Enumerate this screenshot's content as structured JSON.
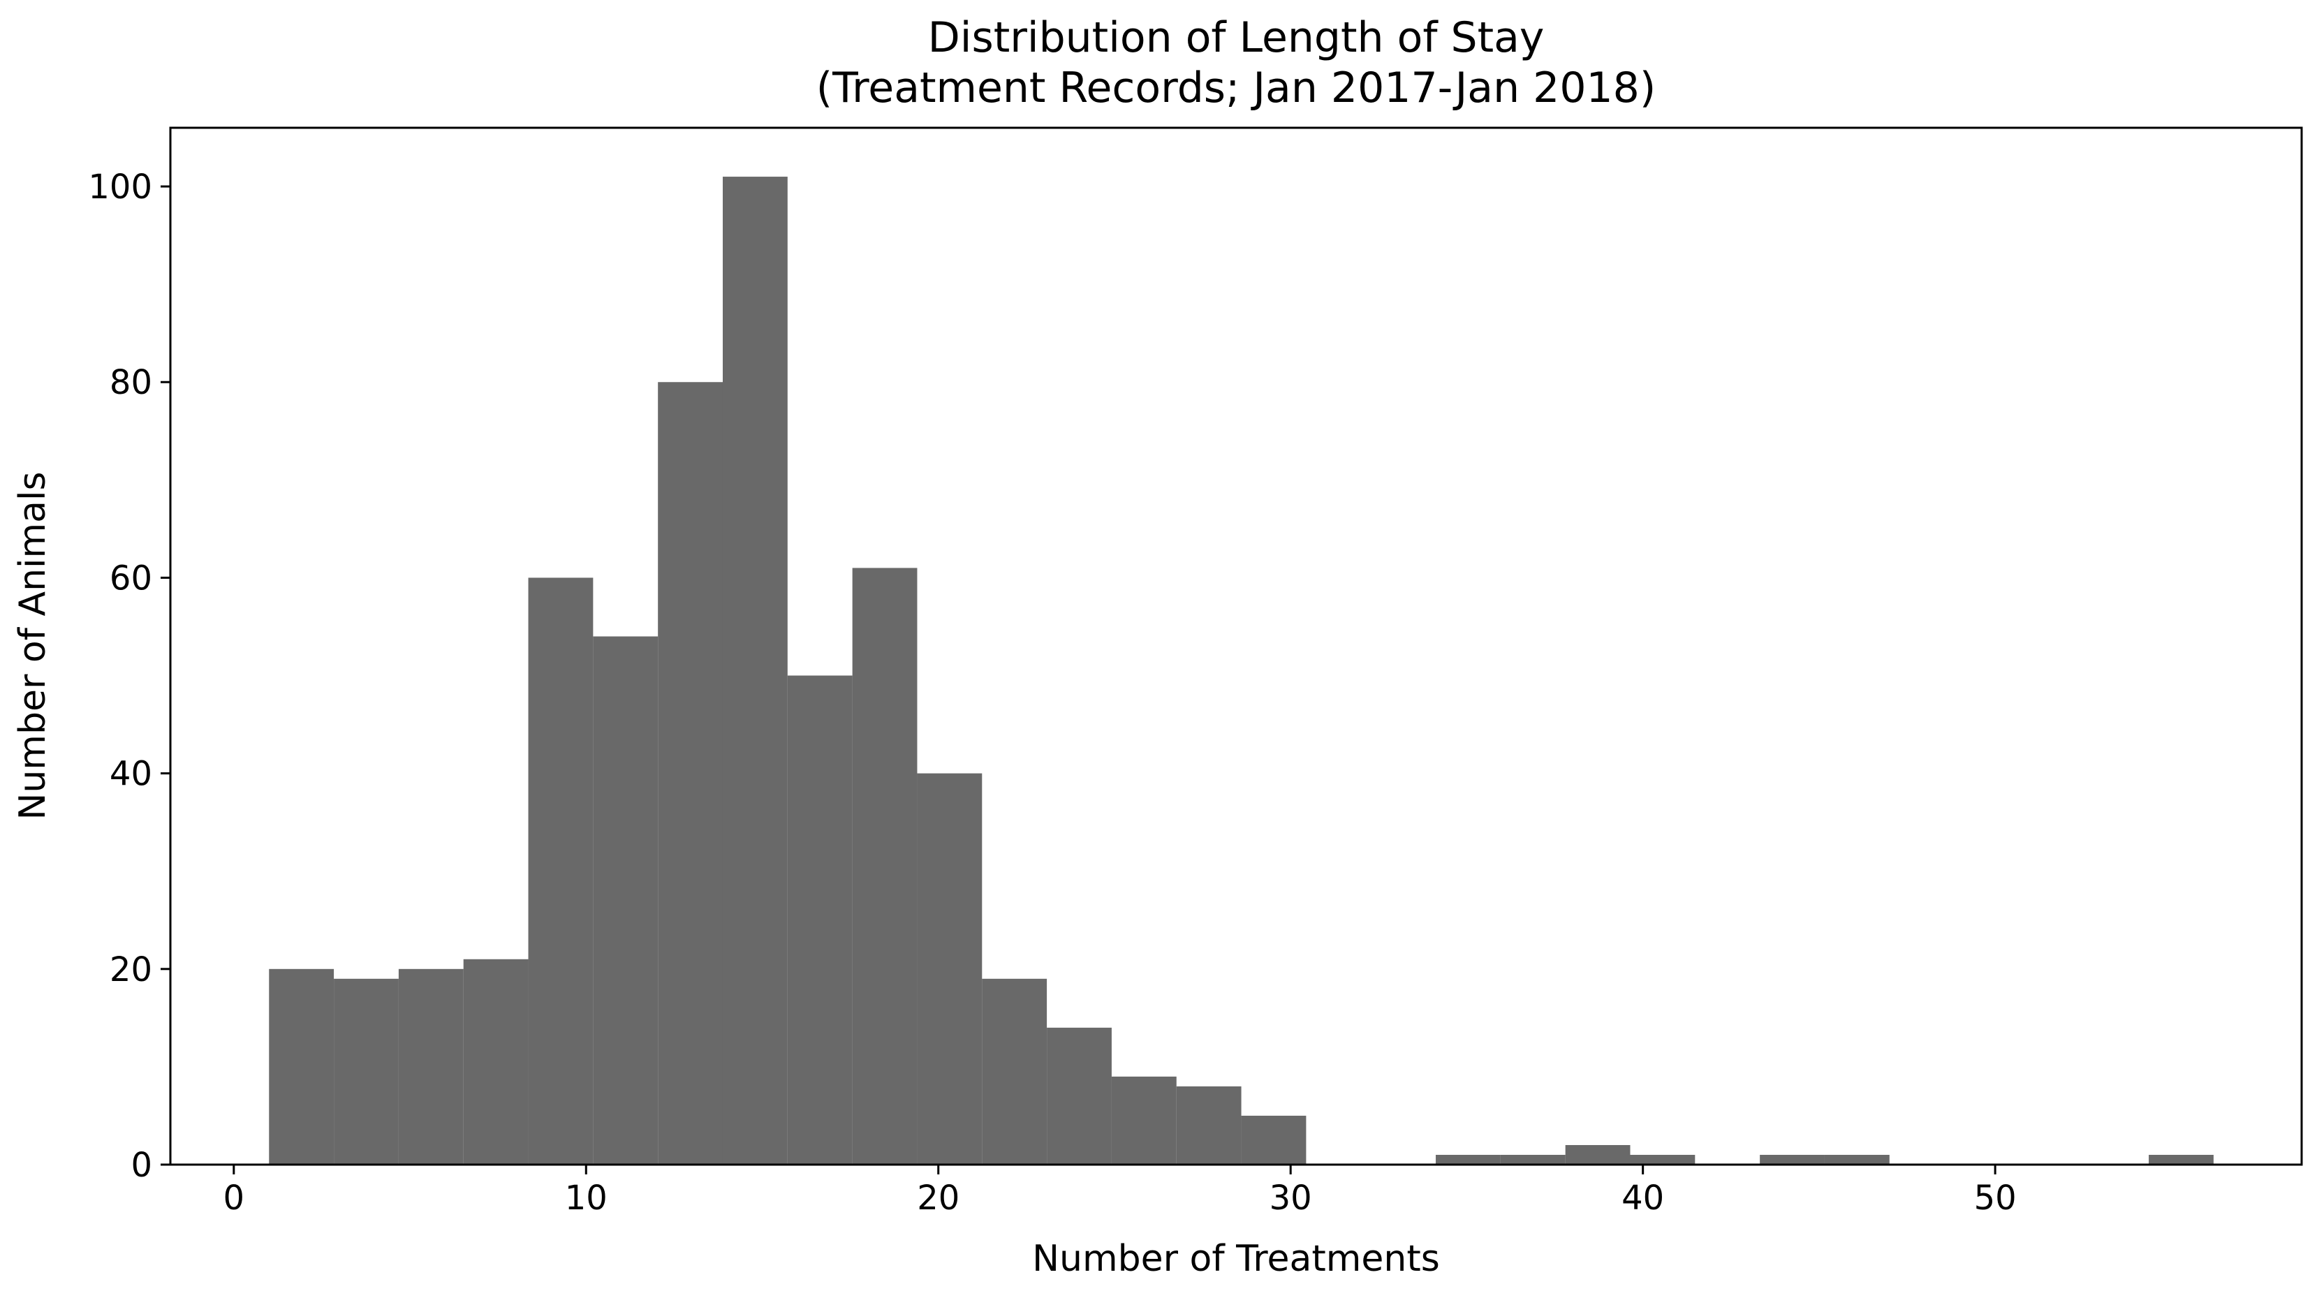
{
  "chart_data": {
    "type": "bar",
    "title": "Distribution of Length of Stay",
    "subtitle": "(Treatment Records; Jan 2017-Jan 2018)",
    "xlabel": "Number of Treatments",
    "ylabel": "Number of Animals",
    "xlim": [
      -1.8,
      58.7
    ],
    "ylim": [
      0,
      106
    ],
    "x_ticks": [
      0,
      10,
      20,
      30,
      40,
      50
    ],
    "y_ticks": [
      0,
      20,
      40,
      60,
      80,
      100
    ],
    "bin_edges": [
      1.0,
      2.84,
      4.68,
      6.52,
      8.36,
      10.2,
      12.04,
      13.88,
      15.72,
      17.56,
      19.4,
      21.24,
      23.08,
      24.92,
      26.76,
      28.6,
      30.44,
      32.28,
      34.12,
      35.96,
      37.8,
      39.64,
      41.48,
      43.32,
      45.16,
      47.0,
      48.84,
      50.68,
      52.52,
      54.36,
      56.2
    ],
    "values": [
      20,
      19,
      20,
      21,
      60,
      54,
      80,
      101,
      50,
      61,
      40,
      19,
      14,
      9,
      8,
      5,
      0,
      0,
      1,
      1,
      2,
      1,
      0,
      1,
      1,
      0,
      0,
      0,
      0,
      1
    ],
    "bar_color": "#696969",
    "grid": false,
    "legend": "none"
  }
}
